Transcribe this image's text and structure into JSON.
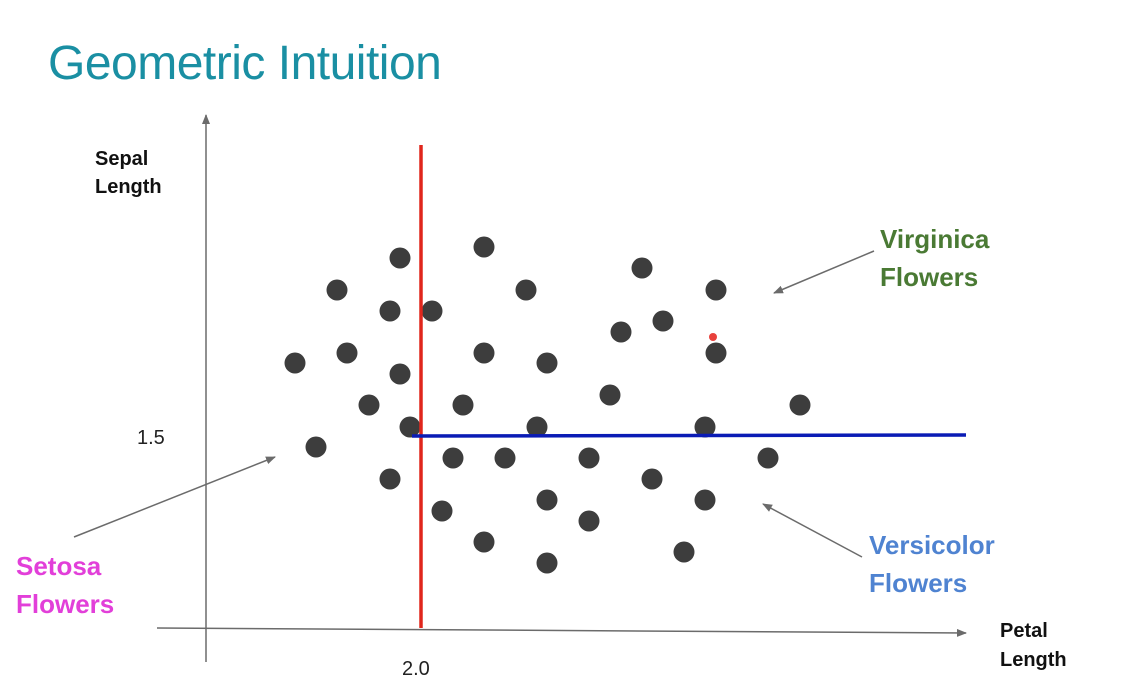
{
  "title": "Geometric Intuition",
  "colors": {
    "title": "#1a8fa3",
    "virginica": "#4a7a34",
    "versicolor": "#4f83d1",
    "setosa": "#e23fd9",
    "split_vertical": "#e0261c",
    "split_horizontal": "#0a1bb5",
    "point": "#3d3d3d",
    "highlight_point": "#e8413c",
    "axis": "#6b6b6b"
  },
  "axes": {
    "y_label_line1": "Sepal",
    "y_label_line2": "Length",
    "x_label_line1": "Petal",
    "x_label_line2": "Length",
    "y_tick": "1.5",
    "x_tick": "2.0"
  },
  "labels": {
    "virginica_line1": "Virginica",
    "virginica_line2": "Flowers",
    "versicolor_line1": "Versicolor",
    "versicolor_line2": "Flowers",
    "setosa_line1": "Setosa",
    "setosa_line2": "Flowers"
  },
  "chart_data": {
    "type": "scatter",
    "x_split": 2.0,
    "y_split": 1.5,
    "highlight_point_count": 1
  }
}
